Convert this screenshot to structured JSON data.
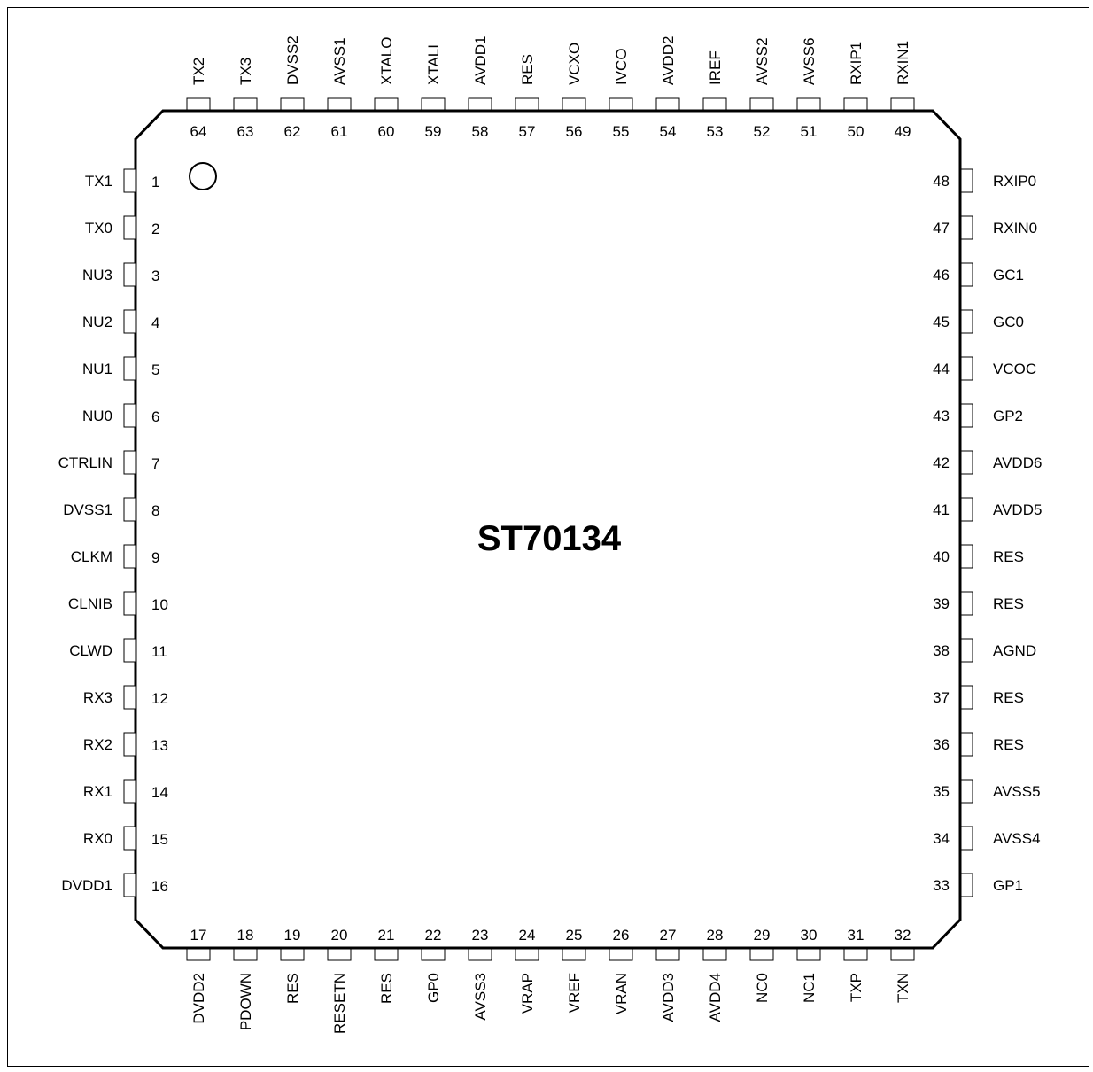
{
  "chip": {
    "name": "ST70134",
    "pin1_marker": "circle"
  },
  "pins": {
    "left": [
      {
        "num": "1",
        "name": "TX1"
      },
      {
        "num": "2",
        "name": "TX0"
      },
      {
        "num": "3",
        "name": "NU3"
      },
      {
        "num": "4",
        "name": "NU2"
      },
      {
        "num": "5",
        "name": "NU1"
      },
      {
        "num": "6",
        "name": "NU0"
      },
      {
        "num": "7",
        "name": "CTRLIN"
      },
      {
        "num": "8",
        "name": "DVSS1"
      },
      {
        "num": "9",
        "name": "CLKM"
      },
      {
        "num": "10",
        "name": "CLNIB"
      },
      {
        "num": "11",
        "name": "CLWD"
      },
      {
        "num": "12",
        "name": "RX3"
      },
      {
        "num": "13",
        "name": "RX2"
      },
      {
        "num": "14",
        "name": "RX1"
      },
      {
        "num": "15",
        "name": "RX0"
      },
      {
        "num": "16",
        "name": "DVDD1"
      }
    ],
    "bottom": [
      {
        "num": "17",
        "name": "DVDD2"
      },
      {
        "num": "18",
        "name": "PDOWN"
      },
      {
        "num": "19",
        "name": "RES"
      },
      {
        "num": "20",
        "name": "RESETN"
      },
      {
        "num": "21",
        "name": "RES"
      },
      {
        "num": "22",
        "name": "GP0"
      },
      {
        "num": "23",
        "name": "AVSS3"
      },
      {
        "num": "24",
        "name": "VRAP"
      },
      {
        "num": "25",
        "name": "VREF"
      },
      {
        "num": "26",
        "name": "VRAN"
      },
      {
        "num": "27",
        "name": "AVDD3"
      },
      {
        "num": "28",
        "name": "AVDD4"
      },
      {
        "num": "29",
        "name": "NC0"
      },
      {
        "num": "30",
        "name": "NC1"
      },
      {
        "num": "31",
        "name": "TXP"
      },
      {
        "num": "32",
        "name": "TXN"
      }
    ],
    "right": [
      {
        "num": "48",
        "name": "RXIP0"
      },
      {
        "num": "47",
        "name": "RXIN0"
      },
      {
        "num": "46",
        "name": "GC1"
      },
      {
        "num": "45",
        "name": "GC0"
      },
      {
        "num": "44",
        "name": "VCOC"
      },
      {
        "num": "43",
        "name": "GP2"
      },
      {
        "num": "42",
        "name": "AVDD6"
      },
      {
        "num": "41",
        "name": "AVDD5"
      },
      {
        "num": "40",
        "name": "RES"
      },
      {
        "num": "39",
        "name": "RES"
      },
      {
        "num": "38",
        "name": "AGND"
      },
      {
        "num": "37",
        "name": "RES"
      },
      {
        "num": "36",
        "name": "RES"
      },
      {
        "num": "35",
        "name": "AVSS5"
      },
      {
        "num": "34",
        "name": "AVSS4"
      },
      {
        "num": "33",
        "name": "GP1"
      }
    ],
    "top": [
      {
        "num": "64",
        "name": "TX2"
      },
      {
        "num": "63",
        "name": "TX3"
      },
      {
        "num": "62",
        "name": "DVSS2"
      },
      {
        "num": "61",
        "name": "AVSS1"
      },
      {
        "num": "60",
        "name": "XTALO"
      },
      {
        "num": "59",
        "name": "XTALI"
      },
      {
        "num": "58",
        "name": "AVDD1"
      },
      {
        "num": "57",
        "name": "RES"
      },
      {
        "num": "56",
        "name": "VCXO"
      },
      {
        "num": "55",
        "name": "IVCO"
      },
      {
        "num": "54",
        "name": "AVDD2"
      },
      {
        "num": "53",
        "name": "IREF"
      },
      {
        "num": "52",
        "name": "AVSS2"
      },
      {
        "num": "51",
        "name": "AVSS6"
      },
      {
        "num": "50",
        "name": "RXIP1"
      },
      {
        "num": "49",
        "name": "RXIN1"
      }
    ]
  }
}
